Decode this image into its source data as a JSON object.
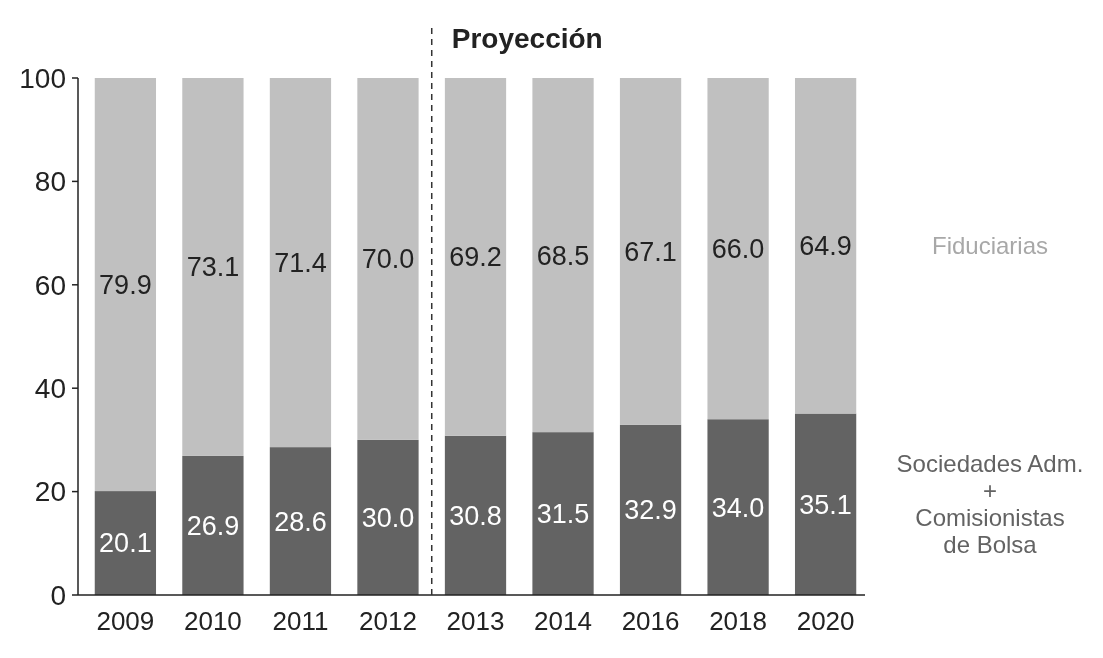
{
  "chart_data": {
    "type": "bar",
    "stacked": true,
    "categories": [
      "2009",
      "2010",
      "2011",
      "2012",
      "2013",
      "2014",
      "2016",
      "2018",
      "2020"
    ],
    "series": [
      {
        "name": "Sociedades Adm.\n+\nComisionistas\nde Bolsa",
        "color": "#636363",
        "values": [
          20.1,
          26.9,
          28.6,
          30.0,
          30.8,
          31.5,
          32.9,
          34.0,
          35.1
        ],
        "value_labels": [
          "20.1",
          "26.9",
          "28.6",
          "30.0",
          "30.8",
          "31.5",
          "32.9",
          "34.0",
          "35.1"
        ]
      },
      {
        "name": "Fiduciarias",
        "color": "#c0c0c0",
        "values": [
          79.9,
          73.1,
          71.4,
          70.0,
          69.2,
          68.5,
          67.1,
          66.0,
          64.9
        ],
        "value_labels": [
          "79.9",
          "73.1",
          "71.4",
          "70.0",
          "69.2",
          "68.5",
          "67.1",
          "66.0",
          "64.9"
        ]
      }
    ],
    "ylim": [
      0,
      100
    ],
    "yticks": [
      0,
      20,
      40,
      60,
      80,
      100
    ],
    "grid": false,
    "annotations": [
      "Proyección"
    ]
  }
}
